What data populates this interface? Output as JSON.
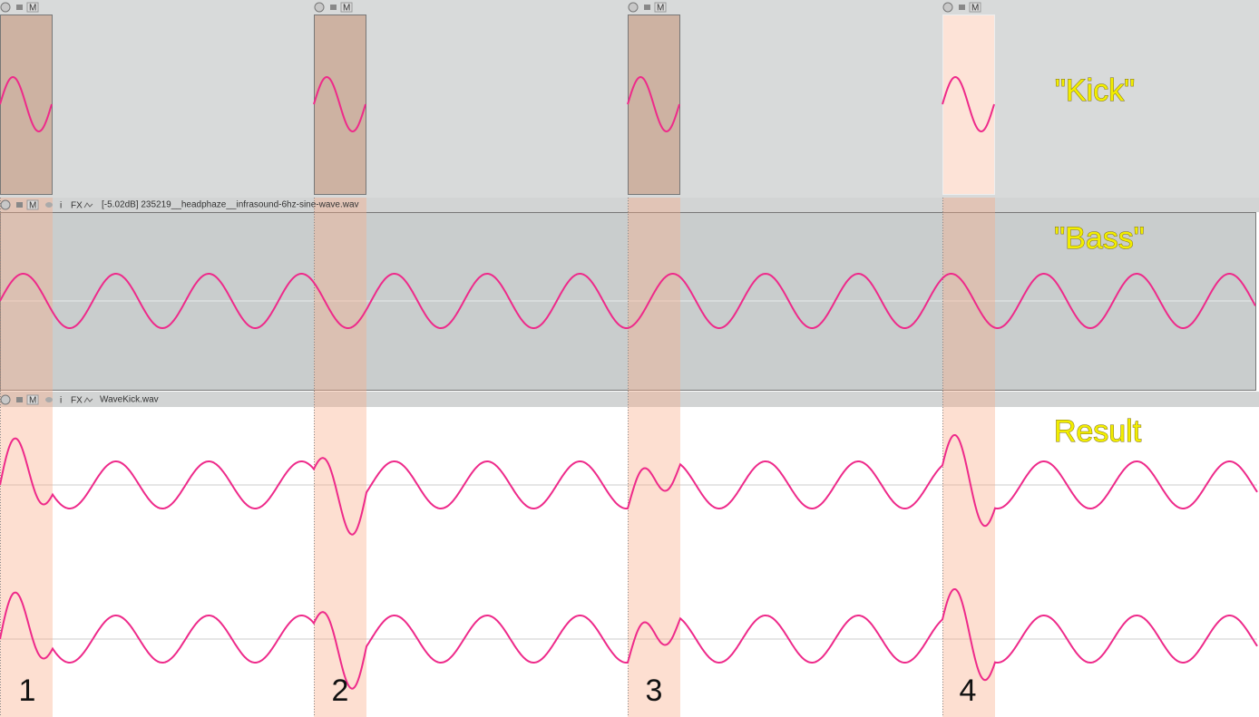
{
  "track_icons": {
    "mute": "M",
    "fx": "FX",
    "info": "i"
  },
  "tracks": [
    {
      "label": "\"Kick\""
    },
    {
      "name": "[-5.02dB] 235219__headphaze__infrasound-6hz-sine-wave.wav",
      "label": "\"Bass\""
    },
    {
      "name": "WaveKick.wav",
      "label": "Result"
    }
  ],
  "markers": [
    "1",
    "2",
    "3",
    "4"
  ]
}
